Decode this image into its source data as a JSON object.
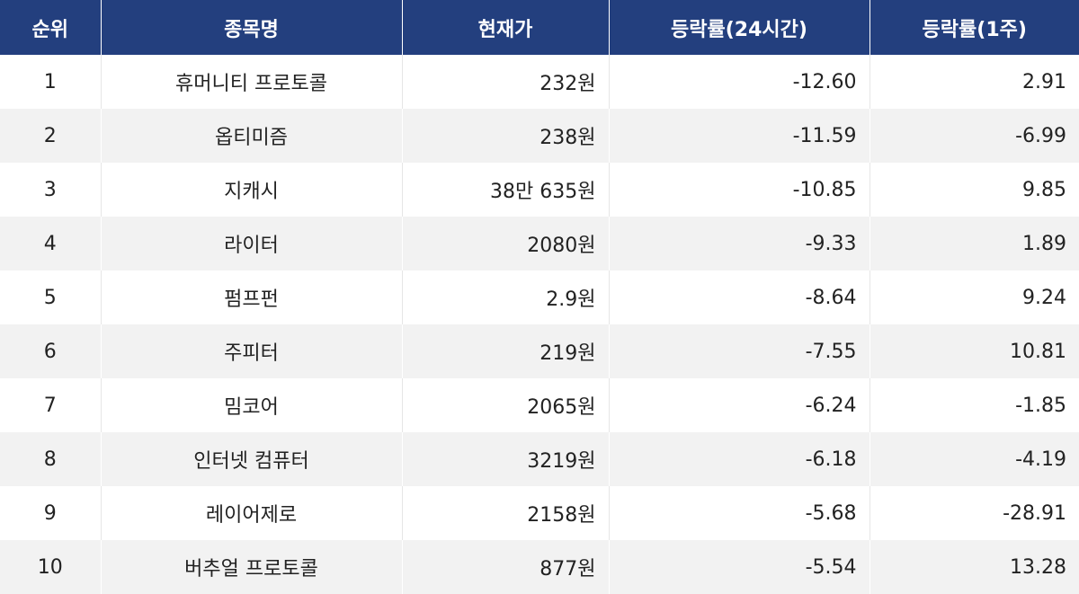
{
  "headers": [
    "순위",
    "종목명",
    "현재가",
    "등락률(24시간)",
    "등락률(1주)"
  ],
  "rows": [
    {
      "rank": "1",
      "name": "휴머니티 프로토콜",
      "price": "232원",
      "change_24h": "-12.60",
      "change_1w": "2.91"
    },
    {
      "rank": "2",
      "name": "옵티미즘",
      "price": "238원",
      "change_24h": "-11.59",
      "change_1w": "-6.99"
    },
    {
      "rank": "3",
      "name": "지캐시",
      "price": "38만 635원",
      "change_24h": "-10.85",
      "change_1w": "9.85"
    },
    {
      "rank": "4",
      "name": "라이터",
      "price": "2080원",
      "change_24h": "-9.33",
      "change_1w": "1.89"
    },
    {
      "rank": "5",
      "name": "펌프펀",
      "price": "2.9원",
      "change_24h": "-8.64",
      "change_1w": "9.24"
    },
    {
      "rank": "6",
      "name": "주피터",
      "price": "219원",
      "change_24h": "-7.55",
      "change_1w": "10.81"
    },
    {
      "rank": "7",
      "name": "밈코어",
      "price": "2065원",
      "change_24h": "-6.24",
      "change_1w": "-1.85"
    },
    {
      "rank": "8",
      "name": "인터넷 컴퓨터",
      "price": "3219원",
      "change_24h": "-6.18",
      "change_1w": "-4.19"
    },
    {
      "rank": "9",
      "name": "레이어제로",
      "price": "2158원",
      "change_24h": "-5.68",
      "change_1w": "-28.91"
    },
    {
      "rank": "10",
      "name": "버추얼 프로토콜",
      "price": "877원",
      "change_24h": "-5.54",
      "change_1w": "13.28"
    }
  ],
  "colors": {
    "header_bg": "#233f7e",
    "header_text": "#ffffff",
    "row_alt_bg": "#f2f2f2"
  }
}
